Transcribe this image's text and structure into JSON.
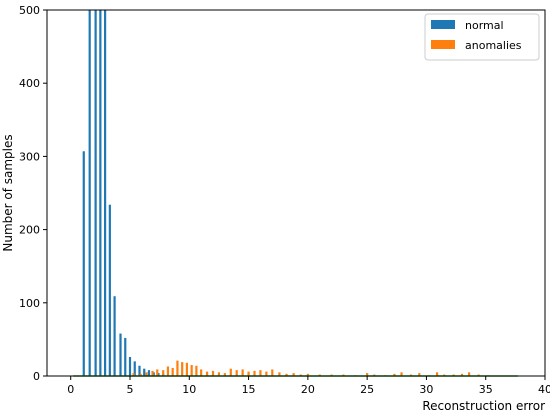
{
  "chart_data": {
    "type": "bar",
    "title": "",
    "xlabel": "Reconstruction error",
    "ylabel": "Number of samples",
    "xlim": [
      -2,
      40
    ],
    "ylim": [
      0,
      500
    ],
    "xticks": [
      0,
      5,
      10,
      15,
      20,
      25,
      30,
      35,
      40
    ],
    "yticks": [
      0,
      100,
      200,
      300,
      400,
      500
    ],
    "grid": false,
    "legend_position": "top-right",
    "series": [
      {
        "name": "normal",
        "color": "#1f77b4",
        "x": [
          1.1,
          1.6,
          2.1,
          2.5,
          2.9,
          3.3,
          3.7,
          4.2,
          4.6,
          5.0,
          5.4,
          5.8,
          6.2,
          6.6,
          7.0,
          7.4,
          7.8
        ],
        "values": [
          307,
          500,
          500,
          500,
          500,
          234,
          109,
          58,
          52,
          26,
          20,
          14,
          10,
          8,
          5,
          4,
          3
        ]
      },
      {
        "name": "anomalies",
        "color": "#ff7f0e",
        "x": [
          5.3,
          5.9,
          6.4,
          6.9,
          7.3,
          7.8,
          8.2,
          8.6,
          9.0,
          9.4,
          9.8,
          10.2,
          10.6,
          11.0,
          11.5,
          12.0,
          12.5,
          13.0,
          13.5,
          14.0,
          14.5,
          15.0,
          15.5,
          16.0,
          16.5,
          17.0,
          17.6,
          18.2,
          18.8,
          19.4,
          20.0,
          21.0,
          22.0,
          23.0,
          24.0,
          25.0,
          25.6,
          26.5,
          27.3,
          27.9,
          28.7,
          29.4,
          30.2,
          30.9,
          31.5,
          32.3,
          33.0,
          33.6,
          34.4,
          35.2
        ],
        "values": [
          4,
          3,
          5,
          7,
          9,
          8,
          13,
          11,
          21,
          19,
          18,
          15,
          14,
          9,
          6,
          7,
          5,
          4,
          10,
          8,
          9,
          6,
          7,
          8,
          6,
          9,
          5,
          3,
          4,
          2,
          3,
          2,
          2,
          2,
          1,
          4,
          2,
          1,
          3,
          5,
          2,
          4,
          1,
          5,
          2,
          2,
          3,
          5,
          2,
          1
        ]
      }
    ]
  }
}
